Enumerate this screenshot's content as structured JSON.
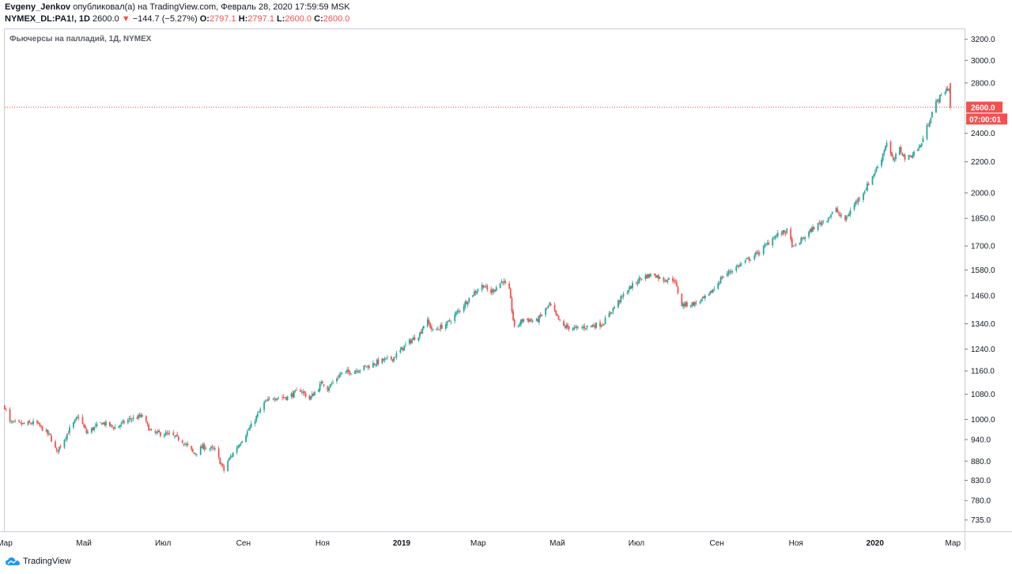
{
  "header": {
    "author": "Evgeny_Jenkov",
    "published_text": "опубликовал(а) на TradingView.com, Февраль 28, 2020 17:59:59 MSK",
    "symbol": "NYMEX_DL:PA1!, 1D",
    "last": "2600.0",
    "change_arrow": "▼",
    "change": "−144.7 (−5.27%)",
    "o_label": "O:",
    "o_value": "2797.1",
    "h_label": "H:",
    "h_value": "2797.1",
    "l_label": "L:",
    "l_value": "2600.0",
    "c_label": "C:",
    "c_value": "2600.0"
  },
  "footer": {
    "brand": "TradingView"
  },
  "colors": {
    "up": "#26a69a",
    "down": "#ef5350",
    "grid": "#e0e3eb",
    "text": "#131722"
  },
  "chart_data": {
    "type": "candlestick",
    "title": "Фьючерсы на палладий, 1Д, NYMEX",
    "scale": "log",
    "ylim": [
      710,
      3300
    ],
    "y_ticks": [
      3200,
      3000,
      2800,
      2400,
      2200,
      2000,
      1850,
      1700,
      1580,
      1460,
      1340,
      1240,
      1160,
      1080,
      1000,
      940,
      880,
      830,
      780,
      735
    ],
    "x_range": [
      "2018-03-01",
      "2020-03-10"
    ],
    "x_ticks": [
      {
        "label": "Мар",
        "date": "2018-03-01"
      },
      {
        "label": "Май",
        "date": "2018-05-01"
      },
      {
        "label": "Июл",
        "date": "2018-07-01"
      },
      {
        "label": "Сен",
        "date": "2018-09-01"
      },
      {
        "label": "Ноя",
        "date": "2018-11-01"
      },
      {
        "label": "2019",
        "date": "2019-01-01"
      },
      {
        "label": "Мар",
        "date": "2019-03-01"
      },
      {
        "label": "Май",
        "date": "2019-05-01"
      },
      {
        "label": "Июл",
        "date": "2019-07-01"
      },
      {
        "label": "Сен",
        "date": "2019-09-01"
      },
      {
        "label": "Ноя",
        "date": "2019-11-01"
      },
      {
        "label": "2020",
        "date": "2020-01-01"
      },
      {
        "label": "Мар",
        "date": "2020-03-01"
      }
    ],
    "last_price": 2600.0,
    "last_price_label": "2600.0",
    "countdown_label": "07:00:01",
    "close_path": [
      [
        "2018-03-01",
        1040
      ],
      [
        "2018-03-05",
        990
      ],
      [
        "2018-03-15",
        985
      ],
      [
        "2018-03-25",
        990
      ],
      [
        "2018-04-05",
        950
      ],
      [
        "2018-04-10",
        905
      ],
      [
        "2018-04-20",
        970
      ],
      [
        "2018-04-27",
        1010
      ],
      [
        "2018-05-03",
        960
      ],
      [
        "2018-05-15",
        990
      ],
      [
        "2018-05-25",
        975
      ],
      [
        "2018-06-05",
        1000
      ],
      [
        "2018-06-15",
        1010
      ],
      [
        "2018-06-22",
        960
      ],
      [
        "2018-07-05",
        955
      ],
      [
        "2018-07-15",
        940
      ],
      [
        "2018-07-25",
        900
      ],
      [
        "2018-08-01",
        920
      ],
      [
        "2018-08-10",
        910
      ],
      [
        "2018-08-17",
        855
      ],
      [
        "2018-08-20",
        880
      ],
      [
        "2018-08-29",
        930
      ],
      [
        "2018-09-07",
        980
      ],
      [
        "2018-09-17",
        1050
      ],
      [
        "2018-09-24",
        1070
      ],
      [
        "2018-10-05",
        1070
      ],
      [
        "2018-10-15",
        1095
      ],
      [
        "2018-10-22",
        1065
      ],
      [
        "2018-11-01",
        1120
      ],
      [
        "2018-11-05",
        1100
      ],
      [
        "2018-11-15",
        1150
      ],
      [
        "2018-11-25",
        1160
      ],
      [
        "2018-12-05",
        1175
      ],
      [
        "2018-12-15",
        1195
      ],
      [
        "2018-12-25",
        1205
      ],
      [
        "2019-01-05",
        1260
      ],
      [
        "2019-01-15",
        1300
      ],
      [
        "2019-01-20",
        1360
      ],
      [
        "2019-01-25",
        1310
      ],
      [
        "2019-02-05",
        1340
      ],
      [
        "2019-02-15",
        1400
      ],
      [
        "2019-02-25",
        1470
      ],
      [
        "2019-03-05",
        1510
      ],
      [
        "2019-03-10",
        1470
      ],
      [
        "2019-03-20",
        1530
      ],
      [
        "2019-03-25",
        1480
      ],
      [
        "2019-03-29",
        1320
      ],
      [
        "2019-04-05",
        1360
      ],
      [
        "2019-04-15",
        1350
      ],
      [
        "2019-04-25",
        1420
      ],
      [
        "2019-05-05",
        1330
      ],
      [
        "2019-05-15",
        1320
      ],
      [
        "2019-05-25",
        1330
      ],
      [
        "2019-06-05",
        1340
      ],
      [
        "2019-06-15",
        1420
      ],
      [
        "2019-06-25",
        1490
      ],
      [
        "2019-07-05",
        1545
      ],
      [
        "2019-07-15",
        1560
      ],
      [
        "2019-07-20",
        1535
      ],
      [
        "2019-07-30",
        1535
      ],
      [
        "2019-08-05",
        1420
      ],
      [
        "2019-08-15",
        1425
      ],
      [
        "2019-08-25",
        1455
      ],
      [
        "2019-09-05",
        1545
      ],
      [
        "2019-09-15",
        1590
      ],
      [
        "2019-09-25",
        1630
      ],
      [
        "2019-10-05",
        1675
      ],
      [
        "2019-10-15",
        1750
      ],
      [
        "2019-10-25",
        1780
      ],
      [
        "2019-10-30",
        1690
      ],
      [
        "2019-11-05",
        1730
      ],
      [
        "2019-11-15",
        1800
      ],
      [
        "2019-11-25",
        1850
      ],
      [
        "2019-12-02",
        1900
      ],
      [
        "2019-12-08",
        1830
      ],
      [
        "2019-12-15",
        1920
      ],
      [
        "2019-12-25",
        2030
      ],
      [
        "2020-01-05",
        2200
      ],
      [
        "2020-01-10",
        2340
      ],
      [
        "2020-01-15",
        2200
      ],
      [
        "2020-01-20",
        2290
      ],
      [
        "2020-01-25",
        2210
      ],
      [
        "2020-02-05",
        2310
      ],
      [
        "2020-02-12",
        2500
      ],
      [
        "2020-02-16",
        2620
      ],
      [
        "2020-02-20",
        2680
      ],
      [
        "2020-02-25",
        2750
      ],
      [
        "2020-02-27",
        2745
      ],
      [
        "2020-02-28",
        2600
      ]
    ]
  }
}
